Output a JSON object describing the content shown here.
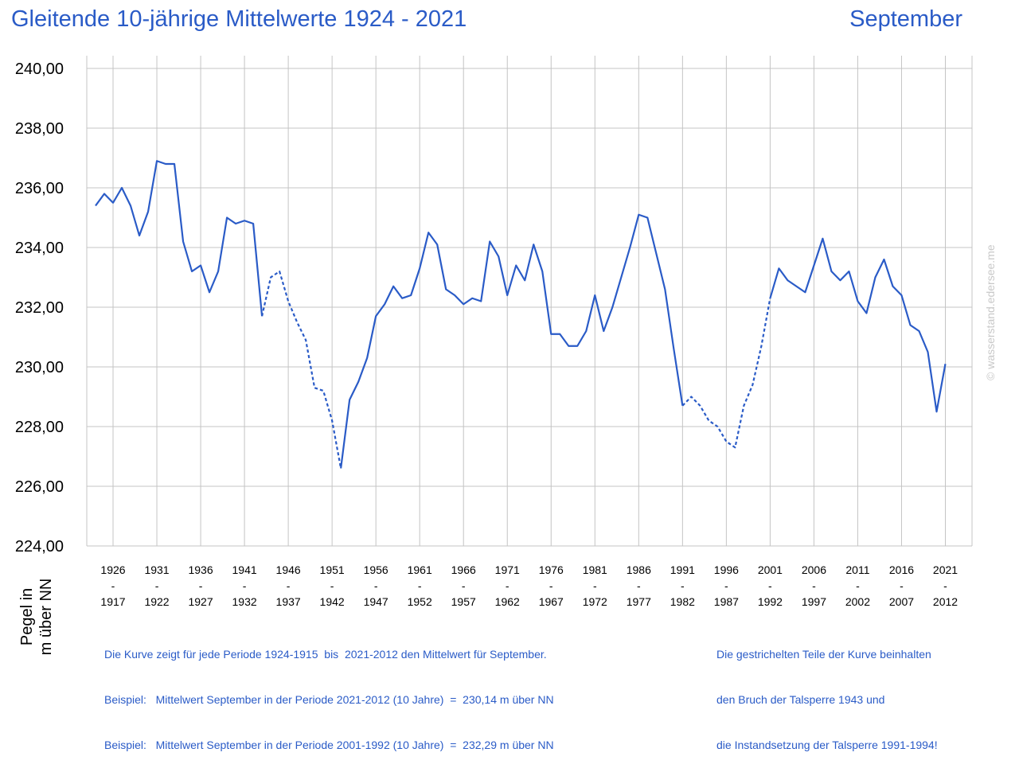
{
  "title": "Gleitende 10-jährige Mittelwerte 1924 - 2021",
  "month": "September",
  "ylabel_lines": [
    "Pegel in",
    "m über NN"
  ],
  "watermark": "© wasserstand.edersee.me",
  "notes_left": [
    "Die Kurve zeigt für jede Periode 1924-1915  bis  2021-2012 den Mittelwert für September.",
    "Beispiel:   Mittelwert September in der Periode 2021-2012 (10 Jahre)  =  230,14 m über NN",
    "Beispiel:   Mittelwert September in der Periode 2001-1992 (10 Jahre)  =  232,29 m über NN"
  ],
  "notes_right": [
    "Die gestrichelten Teile der Kurve beinhalten",
    "den Bruch der Talsperre 1943 und",
    "die Instandsetzung der Talsperre 1991-1994!"
  ],
  "colors": {
    "line": "#2a5bc7",
    "grid": "#c4c4c4",
    "text": "#2a5bc7"
  },
  "chart_data": {
    "type": "line",
    "xlim": [
      1924,
      2021
    ],
    "ylim": [
      224,
      240
    ],
    "yticks": [
      "224,00",
      "226,00",
      "228,00",
      "230,00",
      "232,00",
      "234,00",
      "236,00",
      "238,00",
      "240,00"
    ],
    "xtick_labels": [
      {
        "year": 1926,
        "top": "1926",
        "bottom": "1917"
      },
      {
        "year": 1931,
        "top": "1931",
        "bottom": "1922"
      },
      {
        "year": 1936,
        "top": "1936",
        "bottom": "1927"
      },
      {
        "year": 1941,
        "top": "1941",
        "bottom": "1932"
      },
      {
        "year": 1946,
        "top": "1946",
        "bottom": "1937"
      },
      {
        "year": 1951,
        "top": "1951",
        "bottom": "1942"
      },
      {
        "year": 1956,
        "top": "1956",
        "bottom": "1947"
      },
      {
        "year": 1961,
        "top": "1961",
        "bottom": "1952"
      },
      {
        "year": 1966,
        "top": "1966",
        "bottom": "1957"
      },
      {
        "year": 1971,
        "top": "1971",
        "bottom": "1962"
      },
      {
        "year": 1976,
        "top": "1976",
        "bottom": "1967"
      },
      {
        "year": 1981,
        "top": "1981",
        "bottom": "1972"
      },
      {
        "year": 1986,
        "top": "1986",
        "bottom": "1977"
      },
      {
        "year": 1991,
        "top": "1991",
        "bottom": "1982"
      },
      {
        "year": 1996,
        "top": "1996",
        "bottom": "1987"
      },
      {
        "year": 2001,
        "top": "2001",
        "bottom": "1992"
      },
      {
        "year": 2006,
        "top": "2006",
        "bottom": "1997"
      },
      {
        "year": 2011,
        "top": "2011",
        "bottom": "2002"
      },
      {
        "year": 2016,
        "top": "2016",
        "bottom": "2007"
      },
      {
        "year": 2021,
        "top": "2021",
        "bottom": "2012"
      }
    ],
    "xtick_separator": "-",
    "grid": true,
    "dashed_ranges": [
      [
        1943,
        1952
      ],
      [
        1991,
        2001
      ]
    ],
    "x": [
      1924,
      1925,
      1926,
      1927,
      1928,
      1929,
      1930,
      1931,
      1932,
      1933,
      1934,
      1935,
      1936,
      1937,
      1938,
      1939,
      1940,
      1941,
      1942,
      1943,
      1944,
      1945,
      1946,
      1947,
      1948,
      1949,
      1950,
      1951,
      1952,
      1953,
      1954,
      1955,
      1956,
      1957,
      1958,
      1959,
      1960,
      1961,
      1962,
      1963,
      1964,
      1965,
      1966,
      1967,
      1968,
      1969,
      1970,
      1971,
      1972,
      1973,
      1974,
      1975,
      1976,
      1977,
      1978,
      1979,
      1980,
      1981,
      1982,
      1983,
      1984,
      1985,
      1986,
      1987,
      1988,
      1989,
      1990,
      1991,
      1992,
      1993,
      1994,
      1995,
      1996,
      1997,
      1998,
      1999,
      2000,
      2001,
      2002,
      2003,
      2004,
      2005,
      2006,
      2007,
      2008,
      2009,
      2010,
      2011,
      2012,
      2013,
      2014,
      2015,
      2016,
      2017,
      2018,
      2019,
      2020,
      2021
    ],
    "y": [
      235.4,
      235.8,
      235.5,
      236.0,
      235.4,
      234.4,
      235.2,
      236.9,
      236.8,
      236.8,
      234.2,
      233.2,
      233.4,
      232.5,
      233.2,
      235.0,
      234.8,
      234.9,
      234.8,
      231.7,
      233.0,
      233.2,
      232.2,
      231.5,
      230.9,
      229.3,
      229.2,
      228.2,
      226.6,
      228.9,
      229.5,
      230.3,
      231.7,
      232.1,
      232.7,
      232.3,
      232.4,
      233.3,
      234.5,
      234.1,
      232.6,
      232.4,
      232.1,
      232.3,
      232.2,
      234.2,
      233.7,
      232.4,
      233.4,
      232.9,
      234.1,
      233.2,
      231.1,
      231.1,
      230.7,
      230.7,
      231.2,
      232.4,
      231.2,
      232.0,
      233.0,
      234.0,
      235.1,
      235.0,
      233.8,
      232.6,
      230.6,
      228.7,
      229.0,
      228.7,
      228.2,
      228.0,
      227.5,
      227.3,
      228.7,
      229.4,
      230.7,
      232.3,
      233.3,
      232.9,
      232.7,
      232.5,
      233.4,
      234.3,
      233.2,
      232.9,
      233.2,
      232.2,
      231.8,
      233.0,
      233.6,
      232.7,
      232.4,
      231.4,
      231.2,
      230.5,
      228.5,
      230.1
    ]
  }
}
